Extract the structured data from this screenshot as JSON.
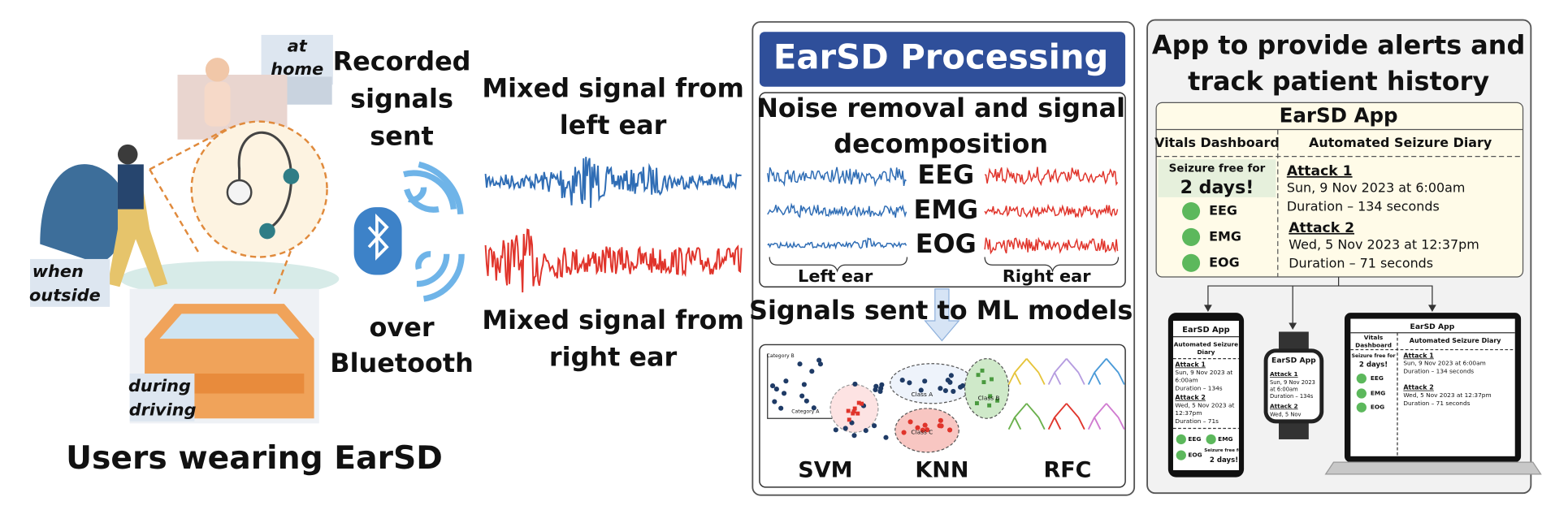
{
  "users": {
    "at_home": [
      "at",
      "home"
    ],
    "when_outside": [
      "when",
      "outside"
    ],
    "during_driving": [
      "during",
      "driving"
    ],
    "caption": "Users wearing EarSD"
  },
  "transmission": {
    "top": [
      "Recorded",
      "signals",
      "sent"
    ],
    "bottom": [
      "over",
      "Bluetooth"
    ]
  },
  "mixed_signals": {
    "left": [
      "Mixed signal from",
      "left ear"
    ],
    "right": [
      "Mixed signal from",
      "right ear"
    ]
  },
  "processing": {
    "title": "EarSD Processing",
    "decomposition_title": [
      "Noise removal and signal",
      "decomposition"
    ],
    "components": [
      "EEG",
      "EMG",
      "EOG"
    ],
    "ears": [
      "Left ear",
      "Right ear"
    ],
    "ml_title": "Signals sent to ML models",
    "ml_labels": [
      "Category B",
      "Category A",
      "Class A",
      "Class B",
      "Class C"
    ],
    "models": [
      "SVM",
      "KNN",
      "RFC"
    ]
  },
  "app_panel": {
    "title": [
      "App to provide alerts and",
      "track patient history"
    ],
    "app": {
      "title": "EarSD App",
      "columns": [
        "Vitals Dashboard",
        "Automated Seizure Diary"
      ],
      "seizure_free": "Seizure free for",
      "days": "2 days!",
      "vitals": [
        "EEG",
        "EMG",
        "EOG"
      ],
      "attacks": [
        {
          "name": "Attack 1",
          "date": "Sun, 9 Nov 2023 at 6:00am",
          "duration": "Duration – 134 seconds"
        },
        {
          "name": "Attack 2",
          "date": "Wed, 5 Nov 2023 at 12:37pm",
          "duration": "Duration – 71 seconds"
        }
      ]
    }
  },
  "phone": {
    "title": "EarSD App",
    "header": [
      "Automated Seizure",
      "Diary"
    ],
    "attacks": [
      {
        "name": "Attack 1",
        "lines": [
          "Sun, 9 Nov 2023 at",
          "6:00am",
          "Duration – 134s"
        ]
      },
      {
        "name": "Attack 2",
        "lines": [
          "Wed, 5 Nov 2023 at",
          "12:37pm",
          "Duration – 71s"
        ]
      }
    ],
    "vitals": [
      "EEG",
      "EMG",
      "EOG"
    ],
    "seizure_free": [
      "Seizure free for",
      "2 days!"
    ]
  },
  "watch": {
    "title": "EarSD App",
    "attacks": [
      {
        "name": "Attack 1",
        "lines": [
          "Sun, 9 Nov 2023",
          "at 6:00am",
          "Duration – 134s"
        ]
      },
      {
        "name": "Attack 2",
        "lines": [
          "Wed, 5 Nov"
        ]
      }
    ]
  },
  "laptop": {
    "title": "EarSD App",
    "vitals_header": [
      "Vitals",
      "Dashboard"
    ],
    "diary_header": "Automated Seizure Diary",
    "seizure_free": [
      "Seizure free for",
      "2 days!"
    ],
    "vitals": [
      "EEG",
      "EMG",
      "EOG"
    ],
    "attacks": [
      {
        "name": "Attack 1",
        "date": "Sun, 9 Nov 2023 at 6:00am",
        "duration": "Duration – 134 seconds"
      },
      {
        "name": "Attack 2",
        "date": "Wed, 5 Nov 2023 at 12:37pm",
        "duration": "Duration – 71 seconds"
      }
    ]
  }
}
